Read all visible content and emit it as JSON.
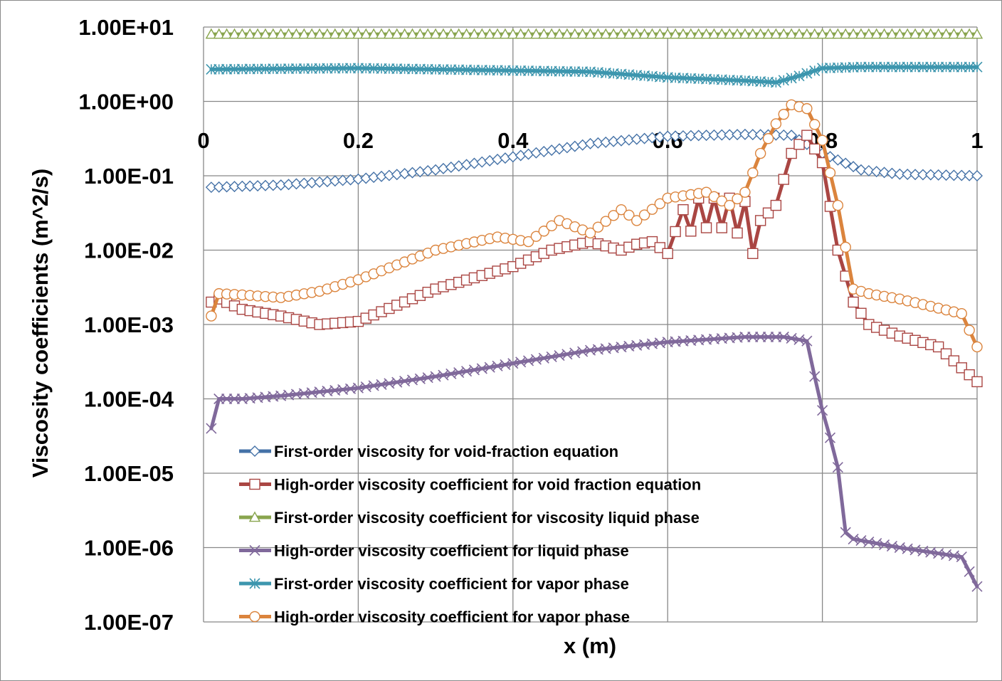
{
  "chart_data": {
    "type": "line",
    "title": "",
    "xlabel": "x (m)",
    "ylabel": "Viscosity coefficients (m^2/s)",
    "xlim": [
      0,
      1
    ],
    "ylim": [
      1e-07,
      10
    ],
    "yscale": "log",
    "grid": true,
    "legend_position": "bottom-left",
    "x_ticks": [
      "0",
      "0.2",
      "0.4",
      "0.6",
      "0.8",
      "1"
    ],
    "x_tick_values": [
      0,
      0.2,
      0.4,
      0.6,
      0.8,
      1
    ],
    "y_ticks": [
      "1.00E+01",
      "1.00E+00",
      "1.00E-01",
      "1.00E-02",
      "1.00E-03",
      "1.00E-04",
      "1.00E-05",
      "1.00E-06",
      "1.00E-07"
    ],
    "y_tick_values": [
      10,
      1,
      0.1,
      0.01,
      0.001,
      0.0001,
      1e-05,
      1e-06,
      1e-07
    ],
    "series": [
      {
        "name": "First-order viscosity for void-fraction equation",
        "color": "#4572A7",
        "marker": "diamond",
        "x": [
          0.01,
          0.1,
          0.2,
          0.3,
          0.4,
          0.5,
          0.6,
          0.7,
          0.76,
          0.8,
          0.85,
          0.9,
          1.0
        ],
        "y": [
          0.07,
          0.075,
          0.09,
          0.12,
          0.18,
          0.27,
          0.34,
          0.36,
          0.35,
          0.2,
          0.12,
          0.105,
          0.1
        ]
      },
      {
        "name": "High-order viscosity coefficient for void fraction equation",
        "color": "#AA4643",
        "marker": "square",
        "x": [
          0.01,
          0.02,
          0.05,
          0.1,
          0.15,
          0.2,
          0.3,
          0.4,
          0.45,
          0.5,
          0.54,
          0.56,
          0.58,
          0.6,
          0.62,
          0.63,
          0.64,
          0.65,
          0.66,
          0.67,
          0.68,
          0.69,
          0.7,
          0.71,
          0.72,
          0.74,
          0.76,
          0.78,
          0.8,
          0.82,
          0.84,
          0.86,
          0.9,
          0.95,
          1.0
        ],
        "y": [
          0.002,
          0.0022,
          0.0016,
          0.0013,
          0.001,
          0.0011,
          0.003,
          0.006,
          0.01,
          0.013,
          0.01,
          0.012,
          0.013,
          0.009,
          0.035,
          0.018,
          0.05,
          0.02,
          0.05,
          0.02,
          0.05,
          0.017,
          0.045,
          0.009,
          0.025,
          0.04,
          0.2,
          0.35,
          0.15,
          0.01,
          0.002,
          0.001,
          0.0007,
          0.0005,
          0.00017
        ]
      },
      {
        "name": "First-order viscosity coefficient for viscosity liquid phase",
        "color": "#89A54E",
        "marker": "triangle",
        "x": [
          0.01,
          0.2,
          0.4,
          0.6,
          0.8,
          1.0
        ],
        "y": [
          8,
          8,
          8,
          8,
          8,
          8
        ]
      },
      {
        "name": "High-order viscosity coefficient for liquid phase",
        "color": "#80699B",
        "marker": "x",
        "x": [
          0.01,
          0.02,
          0.05,
          0.1,
          0.2,
          0.3,
          0.4,
          0.5,
          0.6,
          0.7,
          0.75,
          0.78,
          0.79,
          0.8,
          0.81,
          0.82,
          0.83,
          0.84,
          0.9,
          0.98,
          1.0
        ],
        "y": [
          4e-05,
          0.0001,
          0.0001,
          0.00011,
          0.00014,
          0.0002,
          0.0003,
          0.00045,
          0.00058,
          0.00068,
          0.00068,
          0.0006,
          0.0002,
          7e-05,
          3e-05,
          1.2e-05,
          1.6e-06,
          1.3e-06,
          1e-06,
          7.5e-07,
          3e-07
        ]
      },
      {
        "name": "First-order viscosity coefficient for vapor phase",
        "color": "#3D96AE",
        "marker": "asterisk",
        "x": [
          0.01,
          0.2,
          0.4,
          0.5,
          0.6,
          0.65,
          0.7,
          0.74,
          0.77,
          0.8,
          0.85,
          0.9,
          1.0
        ],
        "y": [
          2.7,
          2.8,
          2.6,
          2.5,
          2.1,
          2.0,
          1.9,
          1.8,
          2.2,
          2.8,
          2.9,
          2.9,
          2.9
        ]
      },
      {
        "name": "High-order viscosity coefficient for vapor phase",
        "color": "#DB843D",
        "marker": "circle",
        "x": [
          0.01,
          0.02,
          0.05,
          0.1,
          0.15,
          0.2,
          0.3,
          0.38,
          0.42,
          0.46,
          0.5,
          0.54,
          0.56,
          0.6,
          0.65,
          0.68,
          0.7,
          0.72,
          0.74,
          0.76,
          0.78,
          0.8,
          0.82,
          0.84,
          0.86,
          0.9,
          0.98,
          1.0
        ],
        "y": [
          0.0013,
          0.0026,
          0.0025,
          0.0023,
          0.0028,
          0.004,
          0.01,
          0.015,
          0.013,
          0.025,
          0.017,
          0.035,
          0.025,
          0.05,
          0.06,
          0.04,
          0.06,
          0.2,
          0.5,
          0.9,
          0.8,
          0.3,
          0.04,
          0.003,
          0.0026,
          0.0022,
          0.0014,
          0.0005
        ]
      }
    ]
  }
}
